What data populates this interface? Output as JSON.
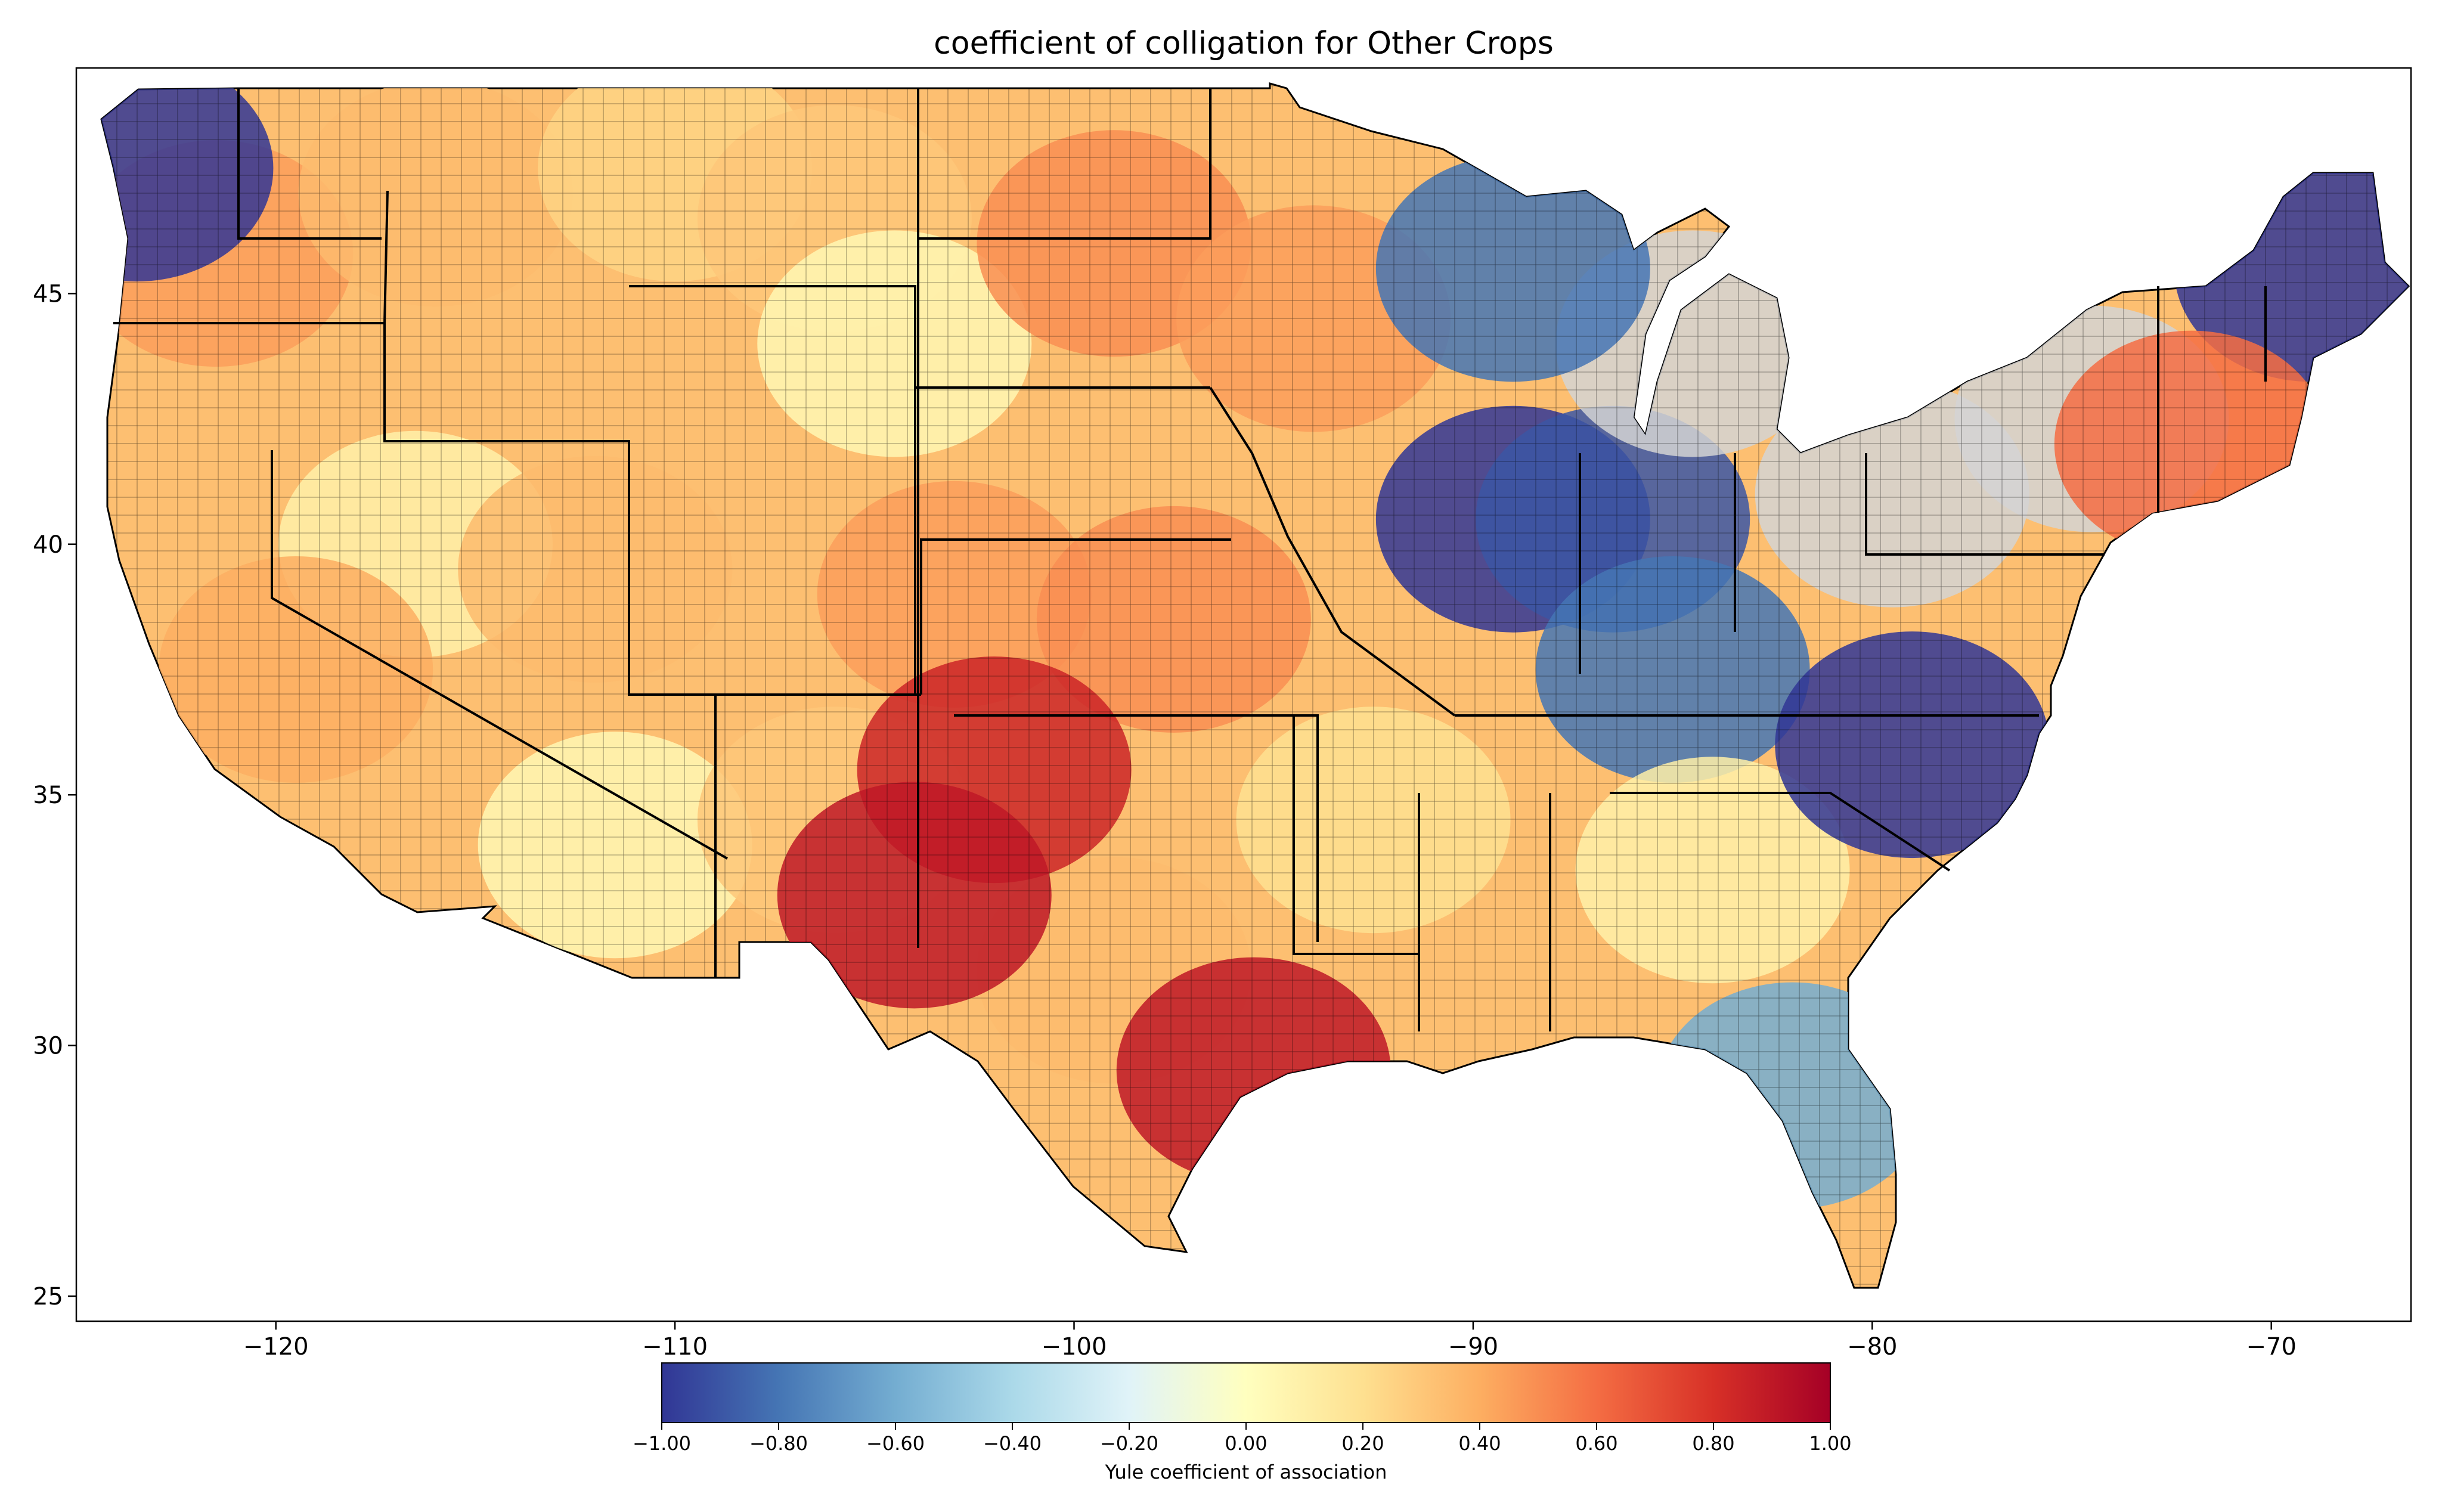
{
  "title": "coefficient of colligation for Other Crops",
  "colors": {
    "background": "#ffffff",
    "land_no_data": "#d3d3d3",
    "border": "#000000",
    "colormap": "RdYlBu_r"
  },
  "map": {
    "type": "choropleth",
    "projection": "plate carree (longitude / latitude)",
    "xlim": [
      -125,
      -66.5
    ],
    "ylim": [
      24.5,
      49.5
    ],
    "x_ticks": [
      {
        "value": -120,
        "label": "−120"
      },
      {
        "value": -110,
        "label": "−110"
      },
      {
        "value": -100,
        "label": "−100"
      },
      {
        "value": -90,
        "label": "−90"
      },
      {
        "value": -80,
        "label": "−80"
      },
      {
        "value": -70,
        "label": "−70"
      }
    ],
    "y_ticks": [
      {
        "value": 25,
        "label": "25"
      },
      {
        "value": 30,
        "label": "30"
      },
      {
        "value": 35,
        "label": "35"
      },
      {
        "value": 40,
        "label": "40"
      },
      {
        "value": 45,
        "label": "45"
      }
    ]
  },
  "colorbar": {
    "label": "Yule coefficient of association",
    "range": [
      -1,
      1
    ],
    "stops": [
      "#313695",
      "#4575b4",
      "#74add1",
      "#abd9e9",
      "#e0f3f8",
      "#ffffbf",
      "#fee090",
      "#fdae61",
      "#f46d43",
      "#d73027",
      "#a50026"
    ],
    "ticks": [
      {
        "value": -1.0,
        "label": "−1.00"
      },
      {
        "value": -0.8,
        "label": "−0.80"
      },
      {
        "value": -0.6,
        "label": "−0.60"
      },
      {
        "value": -0.4,
        "label": "−0.40"
      },
      {
        "value": -0.2,
        "label": "−0.20"
      },
      {
        "value": 0.0,
        "label": "0.00"
      },
      {
        "value": 0.2,
        "label": "0.20"
      },
      {
        "value": 0.4,
        "label": "0.40"
      },
      {
        "value": 0.6,
        "label": "0.60"
      },
      {
        "value": 0.8,
        "label": "0.80"
      },
      {
        "value": 1.0,
        "label": "1.00"
      }
    ]
  },
  "chart_data": {
    "type": "heatmap",
    "description_values": "Approximate county-level Yule coefficient by region (lon, lat, value)",
    "regions": [
      {
        "lon": -121.5,
        "lat": 45.8,
        "value": 0.45
      },
      {
        "lon": -123.5,
        "lat": 47.5,
        "value": -1.0
      },
      {
        "lon": -116.0,
        "lat": 47.0,
        "value": 0.35
      },
      {
        "lon": -110.0,
        "lat": 47.5,
        "value": 0.25
      },
      {
        "lon": -106.0,
        "lat": 46.5,
        "value": 0.3
      },
      {
        "lon": -104.5,
        "lat": 44.0,
        "value": 0.05
      },
      {
        "lon": -116.5,
        "lat": 40.0,
        "value": 0.1
      },
      {
        "lon": -112.0,
        "lat": 39.5,
        "value": 0.35
      },
      {
        "lon": -119.5,
        "lat": 37.5,
        "value": 0.4
      },
      {
        "lon": -111.5,
        "lat": 34.0,
        "value": 0.05
      },
      {
        "lon": -106.0,
        "lat": 34.5,
        "value": 0.3
      },
      {
        "lon": -103.0,
        "lat": 39.0,
        "value": 0.45
      },
      {
        "lon": -99.0,
        "lat": 46.0,
        "value": 0.5
      },
      {
        "lon": -94.0,
        "lat": 44.5,
        "value": 0.45
      },
      {
        "lon": -97.5,
        "lat": 38.5,
        "value": 0.5
      },
      {
        "lon": -99.0,
        "lat": 31.5,
        "value": 0.35
      },
      {
        "lon": -92.5,
        "lat": 34.5,
        "value": 0.2
      },
      {
        "lon": -89.0,
        "lat": 40.5,
        "value": -1.0
      },
      {
        "lon": -86.5,
        "lat": 40.5,
        "value": -0.9
      },
      {
        "lon": -84.5,
        "lat": 44.0,
        "value": null
      },
      {
        "lon": -79.5,
        "lat": 41.0,
        "value": null
      },
      {
        "lon": -85.0,
        "lat": 37.5,
        "value": -0.8
      },
      {
        "lon": -84.0,
        "lat": 33.5,
        "value": 0.1
      },
      {
        "lon": -79.0,
        "lat": 36.0,
        "value": -1.0
      },
      {
        "lon": -82.0,
        "lat": 29.0,
        "value": -0.6
      },
      {
        "lon": -74.5,
        "lat": 42.5,
        "value": null
      },
      {
        "lon": -69.0,
        "lat": 45.5,
        "value": -1.0
      },
      {
        "lon": -72.0,
        "lat": 42.0,
        "value": 0.6
      },
      {
        "lon": -89.0,
        "lat": 45.5,
        "value": -0.8
      },
      {
        "lon": -102.0,
        "lat": 35.5,
        "value": 0.85
      },
      {
        "lon": -104.0,
        "lat": 33.0,
        "value": 0.9
      },
      {
        "lon": -95.5,
        "lat": 29.5,
        "value": 0.9
      }
    ]
  }
}
